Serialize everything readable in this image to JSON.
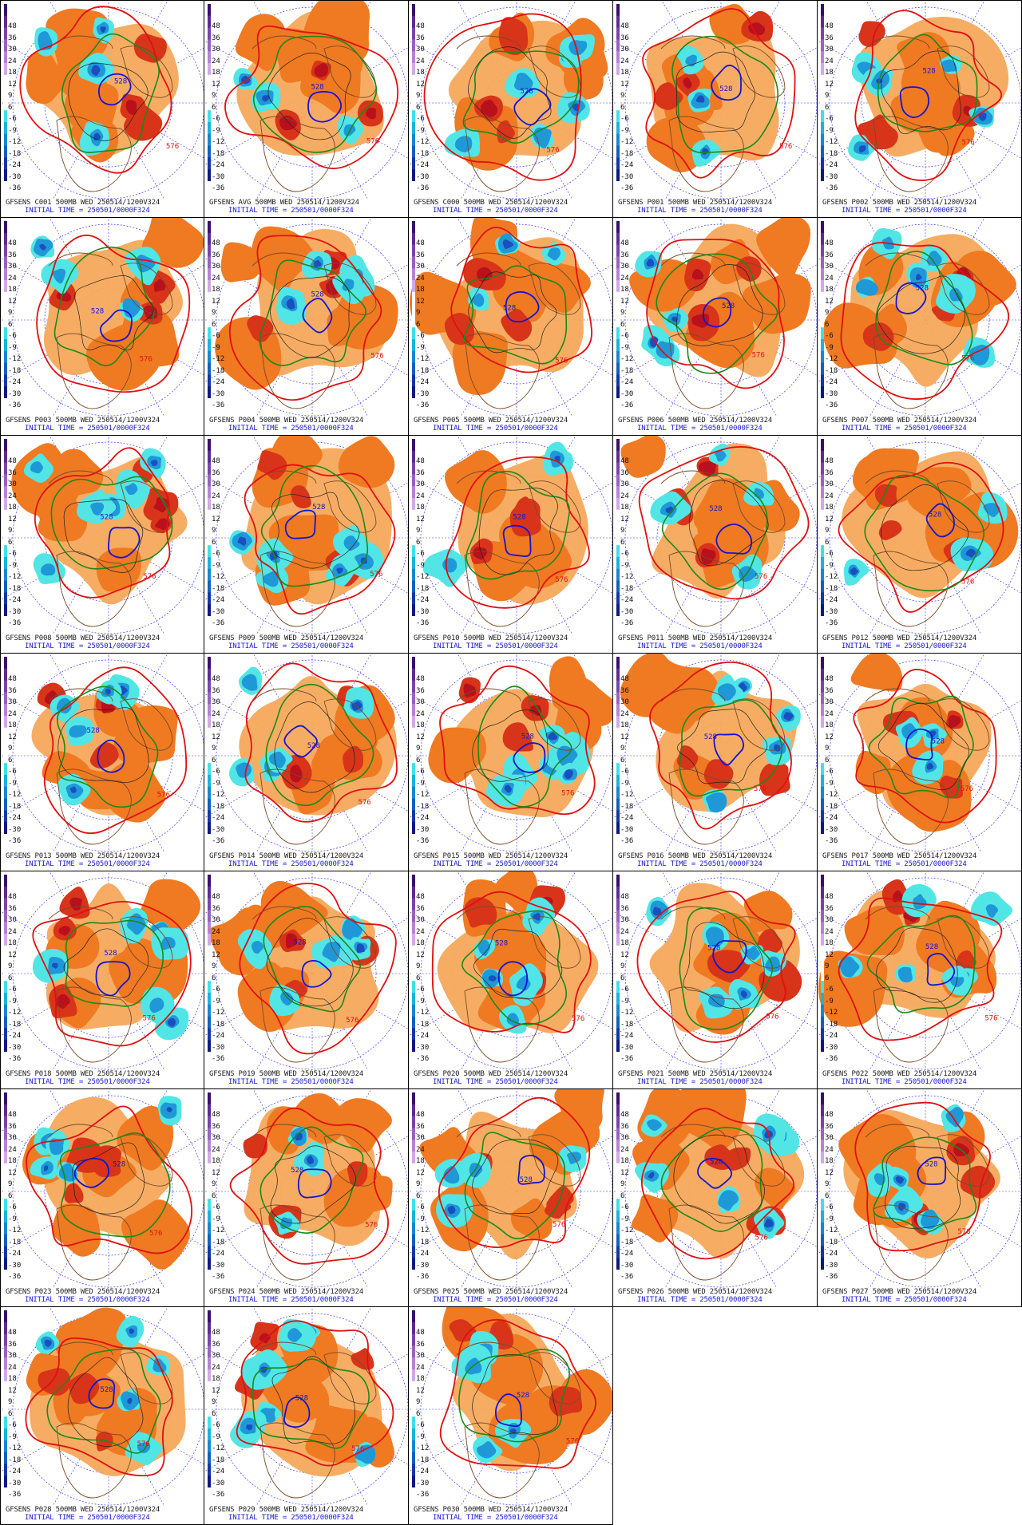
{
  "colorbar": {
    "labels": [
      "48",
      "36",
      "30",
      "24",
      "18",
      "12",
      "9",
      "6",
      "-6",
      "-9",
      "-12",
      "-18",
      "-24",
      "-30",
      "-36"
    ],
    "colors": [
      "#3a0f6b",
      "#5b2c91",
      "#7a44a8",
      "#9862be",
      "#b683d4",
      "#d2a8e6",
      "#ffffff",
      "#ffffff",
      "#ffffff",
      "#3fe0e8",
      "#19b5d9",
      "#1788cf",
      "#155fc0",
      "#1237a8",
      "#0d1a80"
    ]
  },
  "map_colors": {
    "warm_light": "#f6a95b",
    "warm_mid": "#ef7a22",
    "warm_deep": "#d8341a",
    "warm_max": "#b8101c",
    "cold_light": "#52e5e5",
    "cold_mid": "#1f98d8",
    "cold_deep": "#1a4fc0",
    "contour_red": "#e01010",
    "contour_green": "#1a8a1a",
    "contour_blue": "#1515d0",
    "coastline": "#7a4a2a",
    "grid": "#3a3aff"
  },
  "contour_labels": [
    "576",
    "528"
  ],
  "initial_time_text": "INITIAL TIME = 250501/0000F324",
  "panels": [
    {
      "id": "C001",
      "header": "GFSENS C001 500MB WED 250514/1200V324"
    },
    {
      "id": "AVG",
      "header": "GFSENS AVG 500MB WED 250514/1200V324"
    },
    {
      "id": "C000",
      "header": "GFSENS C000 500MB WED 250514/1200V324"
    },
    {
      "id": "P001",
      "header": "GFSENS P001 500MB WED 250514/1200V324"
    },
    {
      "id": "P002",
      "header": "GFSENS P002 500MB WED 250514/1200V324"
    },
    {
      "id": "P003",
      "header": "GFSENS P003 500MB WED 250514/1200V324"
    },
    {
      "id": "P004",
      "header": "GFSENS P004 500MB WED 250514/1200V324"
    },
    {
      "id": "P005",
      "header": "GFSENS P005 500MB WED 250514/1200V324"
    },
    {
      "id": "P006",
      "header": "GFSENS P006 500MB WED 250514/1200V324"
    },
    {
      "id": "P007",
      "header": "GFSENS P007 500MB WED 250514/1200V324"
    },
    {
      "id": "P008",
      "header": "GFSENS P008 500MB WED 250514/1200V324"
    },
    {
      "id": "P009",
      "header": "GFSENS P009 500MB WED 250514/1200V324"
    },
    {
      "id": "P010",
      "header": "GFSENS P010 500MB WED 250514/1200V324"
    },
    {
      "id": "P011",
      "header": "GFSENS P011 500MB WED 250514/1200V324"
    },
    {
      "id": "P012",
      "header": "GFSENS P012 500MB WED 250514/1200V324"
    },
    {
      "id": "P013",
      "header": "GFSENS P013 500MB WED 250514/1200V324"
    },
    {
      "id": "P014",
      "header": "GFSENS P014 500MB WED 250514/1200V324"
    },
    {
      "id": "P015",
      "header": "GFSENS P015 500MB WED 250514/1200V324"
    },
    {
      "id": "P016",
      "header": "GFSENS P016 500MB WED 250514/1200V324"
    },
    {
      "id": "P017",
      "header": "GFSENS P017 500MB WED 250514/1200V324"
    },
    {
      "id": "P018",
      "header": "GFSENS P018 500MB WED 250514/1200V324"
    },
    {
      "id": "P019",
      "header": "GFSENS P019 500MB WED 250514/1200V324"
    },
    {
      "id": "P020",
      "header": "GFSENS P020 500MB WED 250514/1200V324"
    },
    {
      "id": "P021",
      "header": "GFSENS P021 500MB WED 250514/1200V324"
    },
    {
      "id": "P022",
      "header": "GFSENS P022 500MB WED 250514/1200V324"
    },
    {
      "id": "P023",
      "header": "GFSENS P023 500MB WED 250514/1200V324"
    },
    {
      "id": "P024",
      "header": "GFSENS P024 500MB WED 250514/1200V324"
    },
    {
      "id": "P025",
      "header": "GFSENS P025 500MB WED 250514/1200V324"
    },
    {
      "id": "P026",
      "header": "GFSENS P026 500MB WED 250514/1200V324"
    },
    {
      "id": "P027",
      "header": "GFSENS P027 500MB WED 250514/1200V324"
    },
    {
      "id": "P028",
      "header": "GFSENS P028 500MB WED 250514/1200V324"
    },
    {
      "id": "P029",
      "header": "GFSENS P029 500MB WED 250514/1200V324"
    },
    {
      "id": "P030",
      "header": "GFSENS P030 500MB WED 250514/1200V324"
    }
  ]
}
